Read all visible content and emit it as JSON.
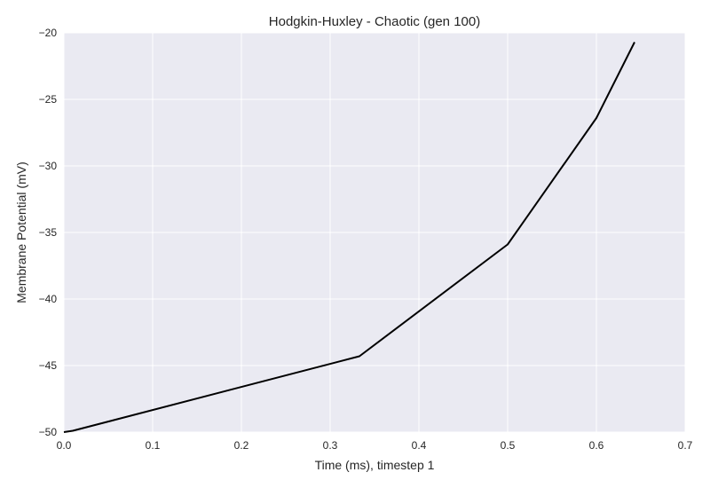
{
  "chart_data": {
    "type": "line",
    "title": "Hodgkin-Huxley - Chaotic (gen 100)",
    "xlabel": "Time (ms), timestep 1",
    "ylabel": "Membrane Potential (mV)",
    "xlim": [
      0,
      0.7
    ],
    "ylim": [
      -50,
      -20
    ],
    "xticks": [
      0.0,
      0.1,
      0.2,
      0.3,
      0.4,
      0.5,
      0.6,
      0.7
    ],
    "xtick_labels": [
      "0.0",
      "0.1",
      "0.2",
      "0.3",
      "0.4",
      "0.5",
      "0.6",
      "0.7"
    ],
    "yticks": [
      -50,
      -45,
      -40,
      -35,
      -30,
      -25,
      -20
    ],
    "ytick_labels": [
      "−50",
      "−45",
      "−40",
      "−35",
      "−30",
      "−25",
      "−20"
    ],
    "grid": true,
    "series": [
      {
        "color": "#000000",
        "x": [
          0.0,
          0.01,
          0.333,
          0.5,
          0.6,
          0.643
        ],
        "y": [
          -50.0,
          -49.9,
          -44.3,
          -35.9,
          -26.4,
          -20.7
        ]
      }
    ],
    "colors": {
      "plot_bg": "#eaeaf2",
      "grid": "#ffffff",
      "text": "#262626"
    }
  }
}
